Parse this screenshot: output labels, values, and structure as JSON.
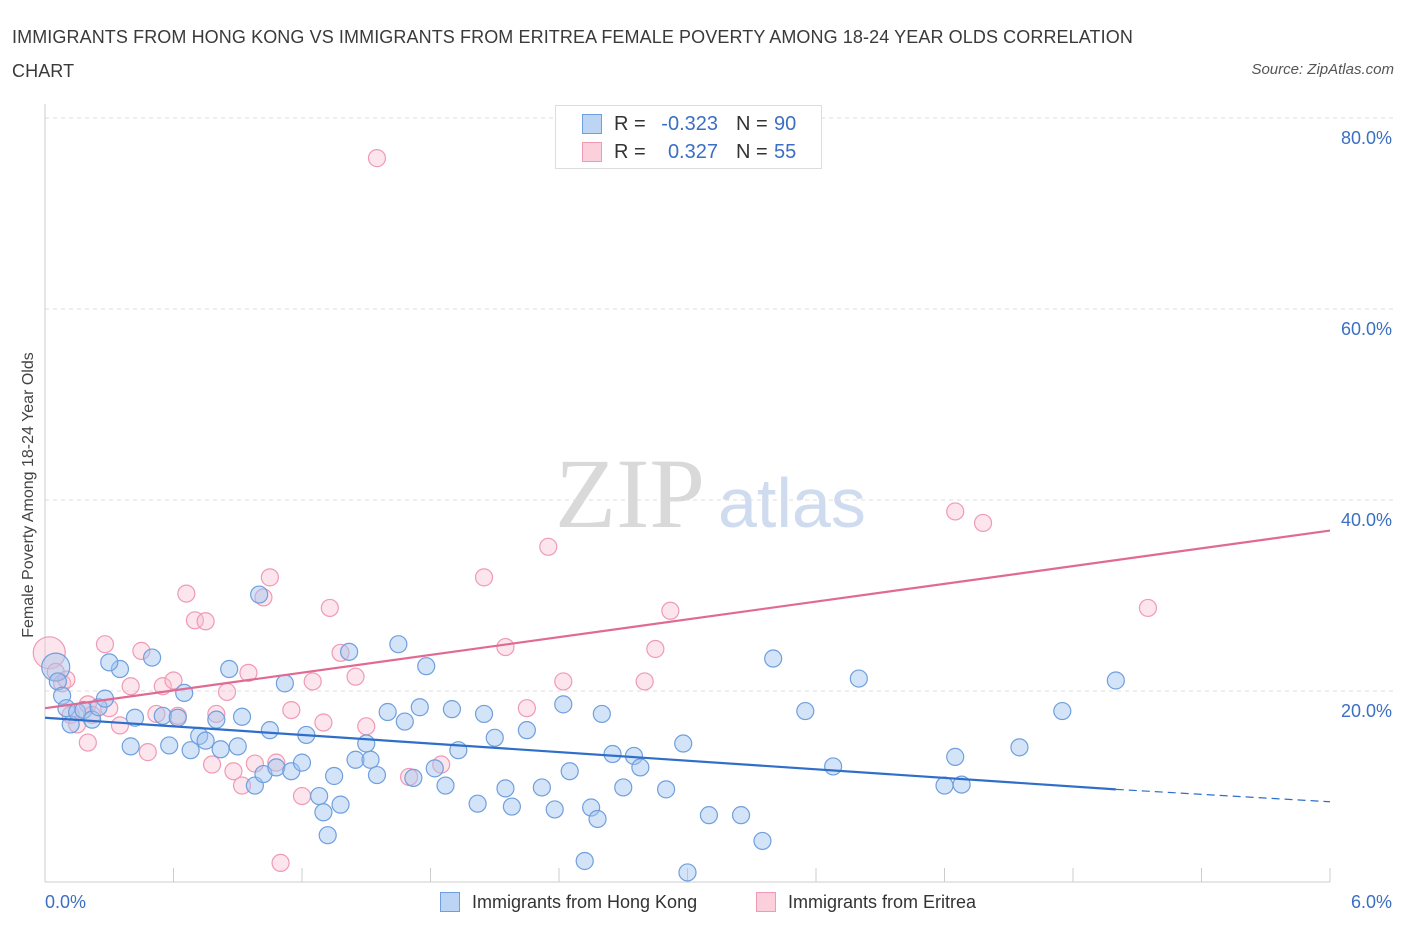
{
  "title": "IMMIGRANTS FROM HONG KONG VS IMMIGRANTS FROM ERITREA FEMALE POVERTY AMONG 18-24 YEAR OLDS CORRELATION CHART",
  "source": "Source: ZipAtlas.com",
  "watermark": {
    "zip": "ZIP",
    "atlas": "atlas"
  },
  "colors": {
    "hong_kong": "#6f9fde",
    "eritrea": "#f09ab5",
    "hong_kong_line": "#2f6fc9",
    "eritrea_line": "#e06a93",
    "tick_text": "#3a6fc4"
  },
  "legend": {
    "rows": [
      {
        "r_label": "R =",
        "r_value": "-0.323",
        "n_label": "N =",
        "n_value": "90"
      },
      {
        "r_label": "R =",
        "r_value": "0.327",
        "n_label": "N =",
        "n_value": "55"
      }
    ]
  },
  "chart_data": {
    "type": "scatter",
    "title": "IMMIGRANTS FROM HONG KONG VS IMMIGRANTS FROM ERITREA FEMALE POVERTY AMONG 18-24 YEAR OLDS CORRELATION CHART",
    "xlabel": "",
    "ylabel": "Female Poverty Among 18-24 Year Olds",
    "xlim": [
      0,
      6
    ],
    "ylim": [
      0,
      80
    ],
    "x_tick_labels": [
      "0.0%",
      "6.0%"
    ],
    "y_tick_labels": [
      "20.0%",
      "40.0%",
      "60.0%",
      "80.0%"
    ],
    "y_ticks": [
      20,
      40,
      60,
      80
    ],
    "grid": true,
    "legend_position": "bottom",
    "series": [
      {
        "name": "Immigrants from Hong Kong",
        "r": -0.323,
        "n": 90,
        "trend": {
          "x": [
            0,
            5.0
          ],
          "y": [
            17.2,
            9.7
          ],
          "dashed_to": [
            6.0,
            8.4
          ]
        },
        "points": [
          [
            0.05,
            22.5
          ],
          [
            0.06,
            21.0
          ],
          [
            0.08,
            19.5
          ],
          [
            0.1,
            18.2
          ],
          [
            0.12,
            16.5
          ],
          [
            0.15,
            17.8
          ],
          [
            0.18,
            18.0
          ],
          [
            0.22,
            17.0
          ],
          [
            0.25,
            18.3
          ],
          [
            0.28,
            19.2
          ],
          [
            0.35,
            22.3
          ],
          [
            0.4,
            14.2
          ],
          [
            0.42,
            17.2
          ],
          [
            0.5,
            23.5
          ],
          [
            0.55,
            17.4
          ],
          [
            0.58,
            14.3
          ],
          [
            0.62,
            17.2
          ],
          [
            0.65,
            19.8
          ],
          [
            0.68,
            13.8
          ],
          [
            0.72,
            15.3
          ],
          [
            0.75,
            14.8
          ],
          [
            0.8,
            17.0
          ],
          [
            0.82,
            13.9
          ],
          [
            0.86,
            22.3
          ],
          [
            0.9,
            14.2
          ],
          [
            0.92,
            17.3
          ],
          [
            0.98,
            10.1
          ],
          [
            1.0,
            30.1
          ],
          [
            1.02,
            11.3
          ],
          [
            1.05,
            15.9
          ],
          [
            1.08,
            12.0
          ],
          [
            1.12,
            20.8
          ],
          [
            1.15,
            11.6
          ],
          [
            1.2,
            12.5
          ],
          [
            1.22,
            15.4
          ],
          [
            1.28,
            9.0
          ],
          [
            1.3,
            7.3
          ],
          [
            1.32,
            4.9
          ],
          [
            1.35,
            11.1
          ],
          [
            1.38,
            8.1
          ],
          [
            1.42,
            24.1
          ],
          [
            1.45,
            12.8
          ],
          [
            1.5,
            14.5
          ],
          [
            1.52,
            12.8
          ],
          [
            1.55,
            11.2
          ],
          [
            1.6,
            17.8
          ],
          [
            1.65,
            24.9
          ],
          [
            1.68,
            16.8
          ],
          [
            1.72,
            10.9
          ],
          [
            1.75,
            18.3
          ],
          [
            1.78,
            22.6
          ],
          [
            1.82,
            11.9
          ],
          [
            1.87,
            10.1
          ],
          [
            1.9,
            18.1
          ],
          [
            1.93,
            13.8
          ],
          [
            2.02,
            8.2
          ],
          [
            2.05,
            17.6
          ],
          [
            2.1,
            15.1
          ],
          [
            2.15,
            9.8
          ],
          [
            2.18,
            7.9
          ],
          [
            2.25,
            15.9
          ],
          [
            2.32,
            9.9
          ],
          [
            2.38,
            7.6
          ],
          [
            2.42,
            18.6
          ],
          [
            2.45,
            11.6
          ],
          [
            2.52,
            2.2
          ],
          [
            2.55,
            7.8
          ],
          [
            2.58,
            6.6
          ],
          [
            2.6,
            17.6
          ],
          [
            2.65,
            13.4
          ],
          [
            2.7,
            9.9
          ],
          [
            2.75,
            13.2
          ],
          [
            2.78,
            12.0
          ],
          [
            2.9,
            9.7
          ],
          [
            2.98,
            14.5
          ],
          [
            3.0,
            1.0
          ],
          [
            3.1,
            7.0
          ],
          [
            3.25,
            7.0
          ],
          [
            3.35,
            4.3
          ],
          [
            3.4,
            23.4
          ],
          [
            3.55,
            17.9
          ],
          [
            3.68,
            12.1
          ],
          [
            3.8,
            21.3
          ],
          [
            4.2,
            10.1
          ],
          [
            4.25,
            13.1
          ],
          [
            4.28,
            10.2
          ],
          [
            4.55,
            14.1
          ],
          [
            4.75,
            17.9
          ],
          [
            5.0,
            21.1
          ],
          [
            0.3,
            23.0
          ]
        ]
      },
      {
        "name": "Immigrants from Eritrea",
        "r": 0.327,
        "n": 55,
        "trend": {
          "x": [
            0,
            6.0
          ],
          "y": [
            18.2,
            36.8
          ]
        },
        "points": [
          [
            0.02,
            24.0
          ],
          [
            0.05,
            22.0
          ],
          [
            0.08,
            20.8
          ],
          [
            0.1,
            21.2
          ],
          [
            0.12,
            17.5
          ],
          [
            0.15,
            16.5
          ],
          [
            0.2,
            18.6
          ],
          [
            0.22,
            17.5
          ],
          [
            0.28,
            24.9
          ],
          [
            0.3,
            18.2
          ],
          [
            0.35,
            16.4
          ],
          [
            0.4,
            20.5
          ],
          [
            0.45,
            24.2
          ],
          [
            0.48,
            13.6
          ],
          [
            0.52,
            17.6
          ],
          [
            0.55,
            20.5
          ],
          [
            0.6,
            21.1
          ],
          [
            0.62,
            17.4
          ],
          [
            0.66,
            30.2
          ],
          [
            0.7,
            27.4
          ],
          [
            0.75,
            27.3
          ],
          [
            0.78,
            12.3
          ],
          [
            0.8,
            17.6
          ],
          [
            0.85,
            19.9
          ],
          [
            0.88,
            11.6
          ],
          [
            0.92,
            10.1
          ],
          [
            0.95,
            21.9
          ],
          [
            0.98,
            12.4
          ],
          [
            1.02,
            29.8
          ],
          [
            1.05,
            31.9
          ],
          [
            1.08,
            12.5
          ],
          [
            1.1,
            2.0
          ],
          [
            1.15,
            18.0
          ],
          [
            1.2,
            9.0
          ],
          [
            1.25,
            21.0
          ],
          [
            1.3,
            16.7
          ],
          [
            1.33,
            28.7
          ],
          [
            1.38,
            24.0
          ],
          [
            1.45,
            21.5
          ],
          [
            1.5,
            16.3
          ],
          [
            1.55,
            75.8
          ],
          [
            1.7,
            11.0
          ],
          [
            1.85,
            12.3
          ],
          [
            2.05,
            31.9
          ],
          [
            2.15,
            24.6
          ],
          [
            2.25,
            18.2
          ],
          [
            2.35,
            35.1
          ],
          [
            2.42,
            21.0
          ],
          [
            2.8,
            21.0
          ],
          [
            2.85,
            24.4
          ],
          [
            2.92,
            28.4
          ],
          [
            4.25,
            38.8
          ],
          [
            4.38,
            37.6
          ],
          [
            5.15,
            28.7
          ],
          [
            0.2,
            14.6
          ]
        ]
      }
    ]
  }
}
